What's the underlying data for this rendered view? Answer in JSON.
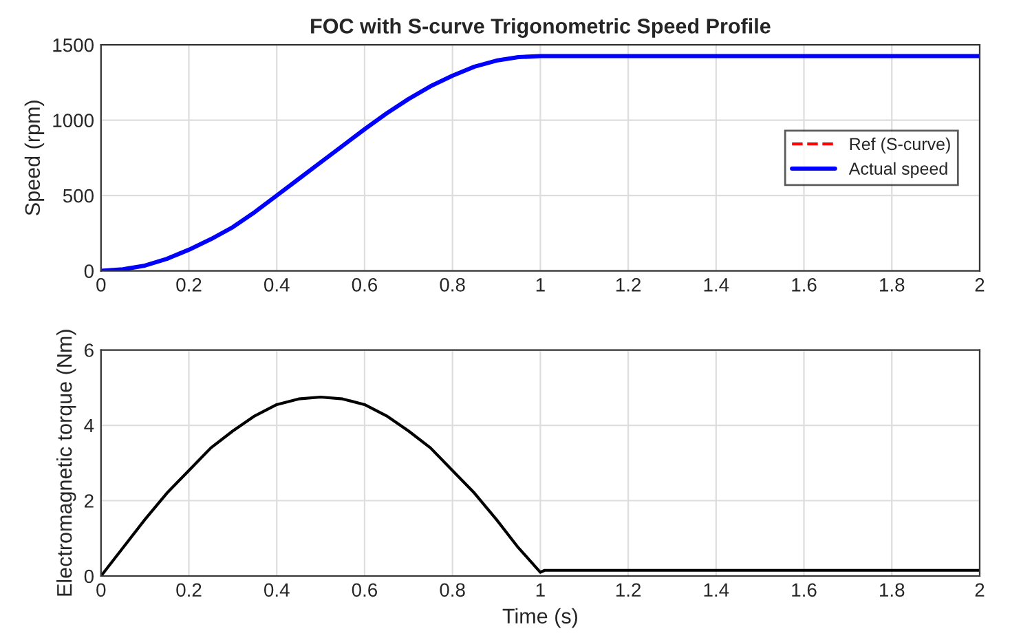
{
  "chart_data": [
    {
      "type": "line",
      "title": "FOC with S-curve Trigonometric Speed Profile",
      "ylabel": "Speed (rpm)",
      "xlim": [
        0,
        2
      ],
      "xticks": [
        0,
        0.2,
        0.4,
        0.6,
        0.8,
        1,
        1.2,
        1.4,
        1.6,
        1.8,
        2
      ],
      "ylim": [
        0,
        1500
      ],
      "yticks": [
        0,
        500,
        1000,
        1500
      ],
      "grid": true,
      "legend": "right",
      "line_style": "solid",
      "x": [
        0,
        0.05,
        0.1,
        0.15,
        0.2,
        0.25,
        0.3,
        0.35,
        0.4,
        0.45,
        0.5,
        0.55,
        0.6,
        0.65,
        0.7,
        0.75,
        0.8,
        0.85,
        0.9,
        0.95,
        1.0,
        1.2,
        1.4,
        1.6,
        1.8,
        2.0
      ],
      "series": [
        {
          "name": "Ref (S-curve)",
          "color": "#ff0000",
          "line_style": "dashed",
          "values": [
            null,
            null,
            null,
            null,
            null,
            null,
            null,
            null,
            null,
            null,
            null,
            null,
            null,
            null,
            null,
            null,
            null,
            null,
            null,
            null,
            null,
            null,
            null,
            null,
            null,
            null
          ]
        },
        {
          "name": "Actual speed",
          "color": "#0000ff",
          "values": [
            0,
            10,
            35,
            80,
            140,
            210,
            290,
            390,
            500,
            610,
            720,
            830,
            940,
            1045,
            1140,
            1225,
            1295,
            1355,
            1395,
            1418,
            1425,
            1425,
            1425,
            1425,
            1425,
            1425
          ]
        }
      ]
    },
    {
      "type": "line",
      "xlabel": "Time (s)",
      "ylabel": "Electromagnetic torque (Nm)",
      "xlim": [
        0,
        2
      ],
      "xticks": [
        0,
        0.2,
        0.4,
        0.6,
        0.8,
        1,
        1.2,
        1.4,
        1.6,
        1.8,
        2
      ],
      "ylim": [
        0,
        6
      ],
      "yticks": [
        0,
        2,
        4,
        6
      ],
      "grid": true,
      "x": [
        0,
        0.05,
        0.1,
        0.15,
        0.2,
        0.25,
        0.3,
        0.35,
        0.4,
        0.45,
        0.5,
        0.55,
        0.6,
        0.65,
        0.7,
        0.75,
        0.8,
        0.85,
        0.9,
        0.95,
        1.0,
        1.01,
        1.2,
        1.4,
        1.6,
        1.8,
        2.0
      ],
      "series": [
        {
          "color": "#000000",
          "values": [
            0,
            0.75,
            1.5,
            2.2,
            2.8,
            3.4,
            3.85,
            4.25,
            4.55,
            4.7,
            4.75,
            4.7,
            4.55,
            4.25,
            3.85,
            3.4,
            2.8,
            2.2,
            1.5,
            0.75,
            0.1,
            0.15,
            0.15,
            0.15,
            0.15,
            0.15,
            0.15
          ]
        }
      ]
    }
  ]
}
